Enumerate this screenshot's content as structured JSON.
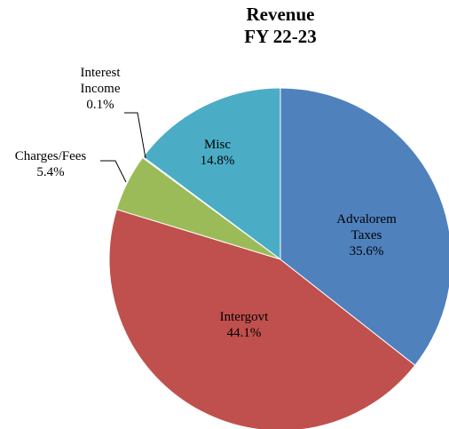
{
  "chart_data": {
    "type": "pie",
    "title": "Revenue\nFY 22-23",
    "categories": [
      "Advalorem Taxes",
      "Intergovt",
      "Charges/Fees",
      "Interest Income",
      "Misc"
    ],
    "values": [
      35.6,
      44.1,
      5.4,
      0.1,
      14.8
    ],
    "value_labels": [
      "35.6%",
      "44.1%",
      "5.4%",
      "0.1%",
      "14.8%"
    ],
    "colors": [
      "#4f81bd",
      "#c0504d",
      "#9bbb59",
      "#8064a2",
      "#4bacc6"
    ]
  }
}
